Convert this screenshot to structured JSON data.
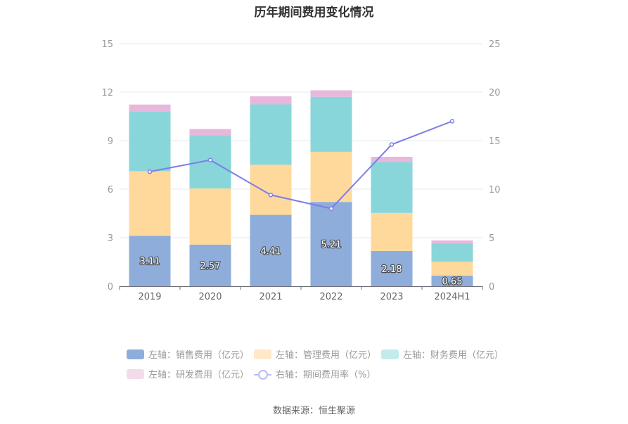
{
  "title": "历年期间费用变化情况",
  "source": "数据来源：恒生聚源",
  "chart_data": {
    "type": "bar",
    "stacked": true,
    "categories": [
      "2019",
      "2020",
      "2021",
      "2022",
      "2023",
      "2024H1"
    ],
    "left_axis": {
      "min": 0,
      "max": 15,
      "ticks": [
        0,
        3,
        6,
        9,
        12,
        15
      ]
    },
    "right_axis": {
      "min": 0,
      "max": 25,
      "ticks": [
        0,
        5,
        10,
        15,
        20,
        25
      ]
    },
    "series": [
      {
        "name": "左轴：销售费用（亿元）",
        "axis": "left",
        "kind": "bar",
        "color": "#8EADDB",
        "values": [
          3.11,
          2.57,
          4.41,
          5.21,
          2.18,
          0.65
        ],
        "labels": [
          "3.11",
          "2.57",
          "4.41",
          "5.21",
          "2.18",
          "0.65"
        ]
      },
      {
        "name": "左轴：管理费用（亿元）",
        "axis": "left",
        "kind": "bar",
        "color": "#FFD99B",
        "values": [
          4.0,
          3.47,
          3.1,
          3.1,
          2.35,
          0.87
        ]
      },
      {
        "name": "左轴：财务费用（亿元）",
        "axis": "left",
        "kind": "bar",
        "color": "#88D6D9",
        "values": [
          3.67,
          3.3,
          3.73,
          3.4,
          3.15,
          1.13
        ]
      },
      {
        "name": "左轴：研发费用（亿元）",
        "axis": "left",
        "kind": "bar",
        "color": "#E7B8DC",
        "values": [
          0.45,
          0.38,
          0.5,
          0.4,
          0.32,
          0.18
        ]
      },
      {
        "name": "右轴：期间费用率（%）",
        "axis": "right",
        "kind": "line",
        "color": "#7B7FEA",
        "values": [
          11.8,
          13.0,
          9.4,
          8.0,
          14.6,
          17.0
        ]
      }
    ],
    "legend_position": "bottom",
    "grid": true
  }
}
